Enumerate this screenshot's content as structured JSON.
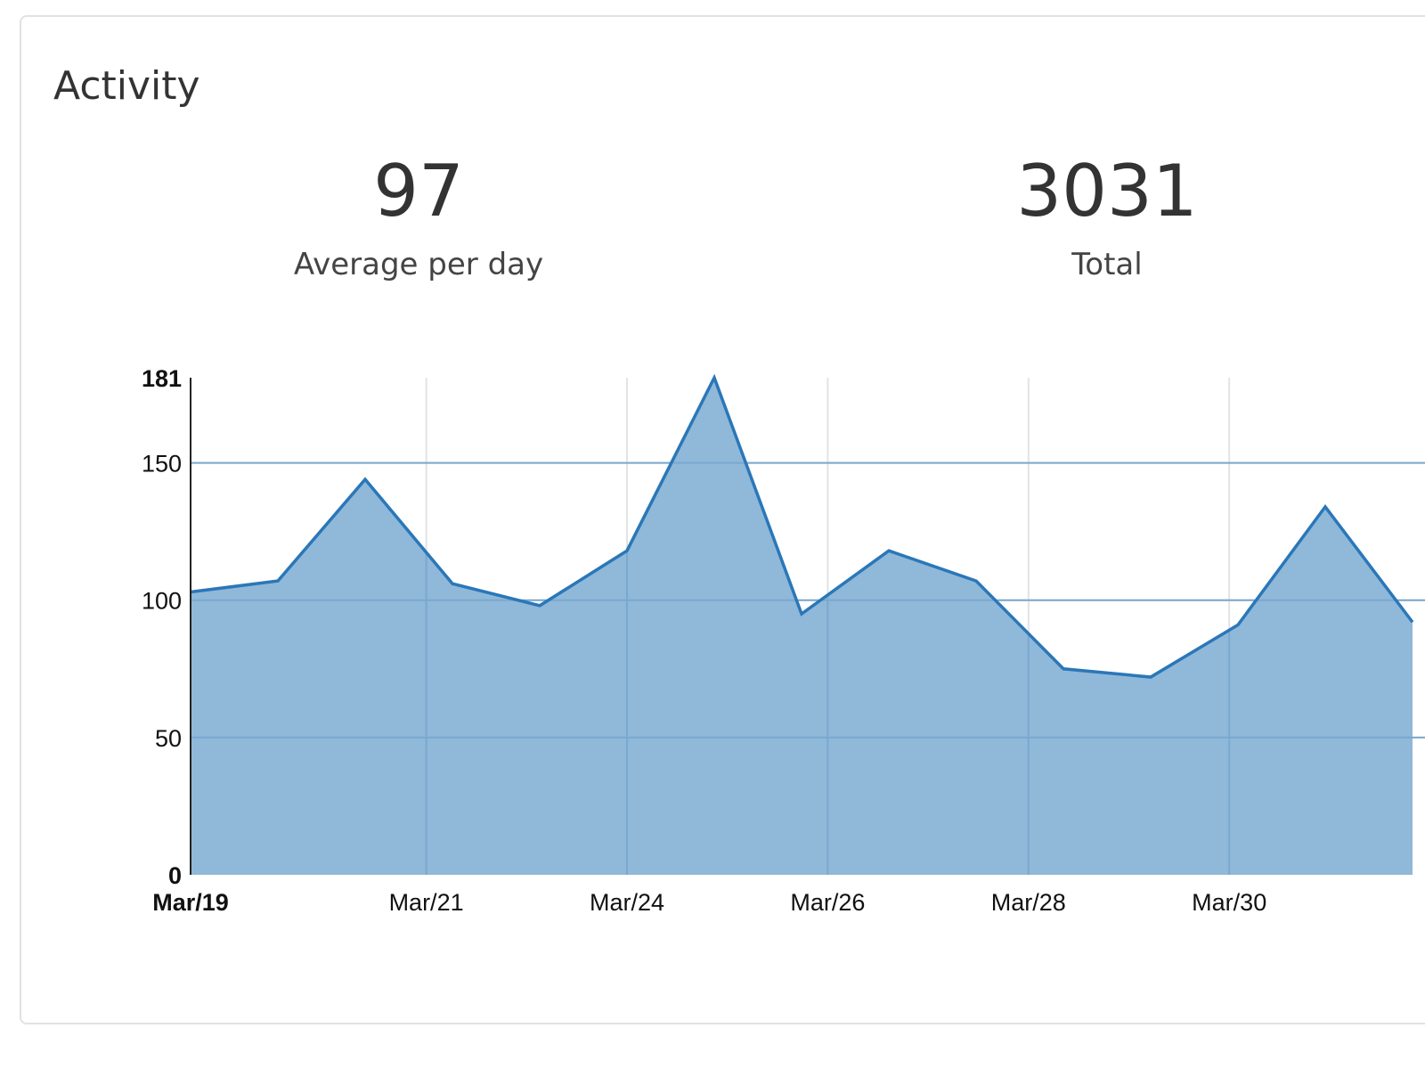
{
  "panel": {
    "title": "Activity"
  },
  "stats": {
    "average": {
      "value": "97",
      "label": "Average per day"
    },
    "total": {
      "value": "3031",
      "label": "Total"
    }
  },
  "colors": {
    "area_fill": "#8fb8d9",
    "line": "#2a77b8",
    "grid": "#e3e3e3",
    "axis": "#222222"
  },
  "chart_data": {
    "type": "area",
    "title": "",
    "xlabel": "",
    "ylabel": "",
    "ylim": [
      0,
      181
    ],
    "y_ticks": [
      {
        "value": 0,
        "label": "0",
        "bold": true
      },
      {
        "value": 50,
        "label": "50",
        "bold": false
      },
      {
        "value": 100,
        "label": "100",
        "bold": false
      },
      {
        "value": 150,
        "label": "150",
        "bold": false
      },
      {
        "value": 181,
        "label": "181",
        "bold": true
      }
    ],
    "x_ticks": [
      {
        "day": 0,
        "label": "Mar/19",
        "bold": true
      },
      {
        "day": 2.7,
        "label": "Mar/21",
        "bold": false
      },
      {
        "day": 5.0,
        "label": "Mar/24",
        "bold": false
      },
      {
        "day": 7.3,
        "label": "Mar/26",
        "bold": false
      },
      {
        "day": 9.6,
        "label": "Mar/28",
        "bold": false
      },
      {
        "day": 11.9,
        "label": "Mar/30",
        "bold": false
      }
    ],
    "grid": true,
    "series": [
      {
        "name": "Activity",
        "x": [
          0,
          1,
          2,
          3,
          4,
          5,
          6,
          7,
          8,
          9,
          10,
          11,
          12,
          13,
          14
        ],
        "values": [
          103,
          107,
          144,
          106,
          98,
          118,
          181,
          95,
          118,
          107,
          75,
          72,
          91,
          134,
          92
        ]
      }
    ]
  }
}
